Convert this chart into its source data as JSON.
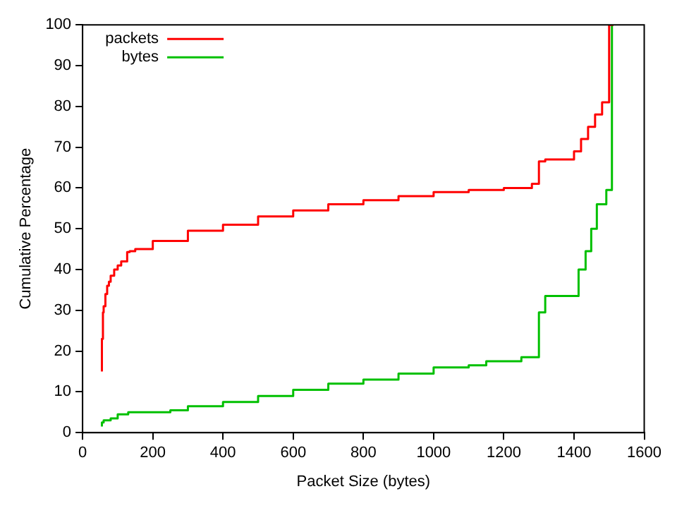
{
  "chart_data": {
    "type": "step",
    "xlabel": "Packet Size (bytes)",
    "ylabel": "Cumulative Percentage",
    "xlim": [
      0,
      1600
    ],
    "xticks": [
      0,
      200,
      400,
      600,
      800,
      1000,
      1200,
      1400,
      1600
    ],
    "ylim": [
      0,
      100
    ],
    "yticks": [
      0,
      10,
      20,
      30,
      40,
      50,
      60,
      70,
      80,
      90,
      100
    ],
    "grid": false,
    "legend": "top left",
    "marker": "none",
    "line_style": "solid",
    "series": [
      {
        "name": "packets",
        "color": "#ff0000",
        "x": [
          55,
          58,
          60,
          65,
          70,
          75,
          80,
          90,
          100,
          110,
          120,
          127,
          134,
          150,
          200,
          300,
          400,
          500,
          600,
          700,
          800,
          900,
          1000,
          1100,
          1200,
          1280,
          1300,
          1318,
          1400,
          1420,
          1440,
          1460,
          1480,
          1500,
          1512
        ],
        "values": [
          15,
          23,
          29.5,
          31,
          34,
          36,
          37,
          38.5,
          40,
          41,
          42,
          42,
          44.3,
          44.5,
          45,
          47,
          49.5,
          51,
          53,
          54.5,
          56,
          57,
          58,
          59,
          59.5,
          60,
          61,
          66.5,
          67,
          69,
          72,
          75,
          78,
          81,
          100
        ]
      },
      {
        "name": "bytes",
        "color": "#00c000",
        "x": [
          55,
          60,
          80,
          100,
          130,
          150,
          250,
          300,
          400,
          500,
          600,
          700,
          800,
          900,
          1000,
          1100,
          1150,
          1250,
          1300,
          1318,
          1413,
          1433,
          1449,
          1465,
          1492,
          1508,
          1512
        ],
        "values": [
          1.5,
          2.5,
          3,
          3.5,
          4.5,
          5,
          5,
          5.5,
          6.5,
          7.5,
          9,
          10.5,
          12,
          13,
          14.5,
          16,
          16.5,
          17.5,
          18.5,
          29.5,
          33.5,
          40,
          44.5,
          50,
          56,
          59.5,
          100
        ]
      }
    ]
  }
}
